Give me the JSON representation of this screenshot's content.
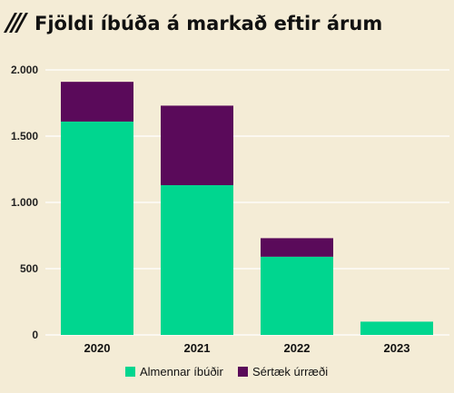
{
  "chart_data": {
    "type": "bar",
    "stacked": true,
    "title": "Fjöldi íbúða á markað eftir árum",
    "categories": [
      "2020",
      "2021",
      "2022",
      "2023"
    ],
    "series": [
      {
        "name": "Almennar íbúðir",
        "color": "#00d68f",
        "values": [
          1610,
          1130,
          590,
          100
        ]
      },
      {
        "name": "Sértæk úrræði",
        "color": "#5a0a5a",
        "values": [
          300,
          600,
          140,
          0
        ]
      }
    ],
    "ylim": [
      0,
      2000
    ],
    "yticks": [
      0,
      500,
      1000,
      1500,
      2000
    ],
    "ytick_labels": [
      "0",
      "500",
      "1.000",
      "1.500",
      "2.000"
    ],
    "grid": true,
    "legend_position": "bottom",
    "xlabel": "",
    "ylabel": ""
  },
  "colors": {
    "background": "#f4ecd6",
    "grid": "#ffffff",
    "title_icon": "#111111"
  },
  "title_icon": "diagonal-stripes-icon"
}
